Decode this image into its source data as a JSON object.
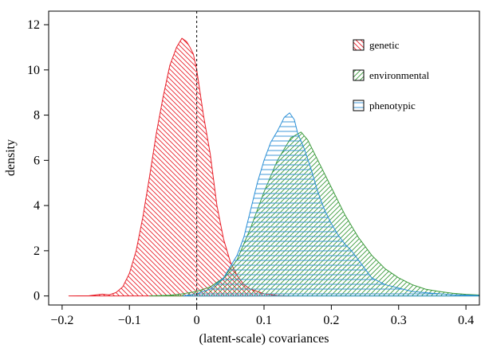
{
  "chart_data": {
    "type": "area",
    "xlabel": "(latent-scale) covariances",
    "ylabel": "density",
    "xlim": [
      -0.22,
      0.42
    ],
    "ylim": [
      -0.4,
      12.6
    ],
    "x_ticks": [
      -0.2,
      -0.1,
      0,
      0.1,
      0.2,
      0.3,
      0.4
    ],
    "x_tick_labels": [
      "−0.2",
      "−0.1",
      "0",
      "0.1",
      "0.2",
      "0.3",
      "0.4"
    ],
    "y_ticks": [
      0,
      2,
      4,
      6,
      8,
      10,
      12
    ],
    "y_tick_labels": [
      "0",
      "2",
      "4",
      "6",
      "8",
      "10",
      "12"
    ],
    "reference_line": {
      "x": 0,
      "style": "dashed",
      "color": "#000000"
    },
    "grid": false,
    "legend_position": "top-right",
    "series": [
      {
        "name": "genetic",
        "color": "#e8202a",
        "pattern": "diagonal-backslash",
        "points": [
          [
            -0.19,
            0
          ],
          [
            -0.16,
            0.01
          ],
          [
            -0.14,
            0.08
          ],
          [
            -0.13,
            0.05
          ],
          [
            -0.12,
            0.15
          ],
          [
            -0.11,
            0.4
          ],
          [
            -0.1,
            1.0
          ],
          [
            -0.09,
            2.0
          ],
          [
            -0.08,
            3.5
          ],
          [
            -0.07,
            5.3
          ],
          [
            -0.06,
            7.2
          ],
          [
            -0.05,
            8.8
          ],
          [
            -0.04,
            10.2
          ],
          [
            -0.03,
            11.0
          ],
          [
            -0.022,
            11.4
          ],
          [
            -0.015,
            11.25
          ],
          [
            -0.01,
            11.0
          ],
          [
            -0.005,
            10.7
          ],
          [
            0,
            10.0
          ],
          [
            0.005,
            9.0
          ],
          [
            0.01,
            8.0
          ],
          [
            0.02,
            6.3
          ],
          [
            0.03,
            4.0
          ],
          [
            0.04,
            2.5
          ],
          [
            0.05,
            1.5
          ],
          [
            0.06,
            0.9
          ],
          [
            0.07,
            0.5
          ],
          [
            0.08,
            0.3
          ],
          [
            0.1,
            0.1
          ],
          [
            0.12,
            0.02
          ],
          [
            0.14,
            0
          ]
        ]
      },
      {
        "name": "environmental",
        "color": "#3a9a3a",
        "pattern": "diagonal-slash",
        "points": [
          [
            -0.07,
            0
          ],
          [
            -0.04,
            0.03
          ],
          [
            -0.02,
            0.1
          ],
          [
            0,
            0.2
          ],
          [
            0.02,
            0.4
          ],
          [
            0.04,
            0.8
          ],
          [
            0.06,
            1.6
          ],
          [
            0.08,
            3.0
          ],
          [
            0.1,
            4.6
          ],
          [
            0.12,
            6.0
          ],
          [
            0.14,
            7.0
          ],
          [
            0.155,
            7.25
          ],
          [
            0.165,
            6.9
          ],
          [
            0.18,
            6.0
          ],
          [
            0.2,
            4.8
          ],
          [
            0.22,
            3.6
          ],
          [
            0.24,
            2.6
          ],
          [
            0.26,
            1.8
          ],
          [
            0.28,
            1.2
          ],
          [
            0.3,
            0.8
          ],
          [
            0.32,
            0.5
          ],
          [
            0.34,
            0.3
          ],
          [
            0.36,
            0.2
          ],
          [
            0.38,
            0.12
          ],
          [
            0.4,
            0.07
          ],
          [
            0.42,
            0.04
          ]
        ]
      },
      {
        "name": "phenotypic",
        "color": "#2a8fd6",
        "pattern": "horizontal",
        "points": [
          [
            -0.02,
            0
          ],
          [
            0,
            0.1
          ],
          [
            0.02,
            0.3
          ],
          [
            0.04,
            0.8
          ],
          [
            0.06,
            1.8
          ],
          [
            0.07,
            2.6
          ],
          [
            0.08,
            3.8
          ],
          [
            0.09,
            5.0
          ],
          [
            0.1,
            6.0
          ],
          [
            0.11,
            6.8
          ],
          [
            0.12,
            7.3
          ],
          [
            0.13,
            7.9
          ],
          [
            0.138,
            8.1
          ],
          [
            0.145,
            7.8
          ],
          [
            0.15,
            7.2
          ],
          [
            0.16,
            6.5
          ],
          [
            0.17,
            5.6
          ],
          [
            0.18,
            4.6
          ],
          [
            0.19,
            3.8
          ],
          [
            0.2,
            3.2
          ],
          [
            0.21,
            2.7
          ],
          [
            0.22,
            2.3
          ],
          [
            0.23,
            2.0
          ],
          [
            0.24,
            1.6
          ],
          [
            0.25,
            1.2
          ],
          [
            0.26,
            0.8
          ],
          [
            0.28,
            0.5
          ],
          [
            0.3,
            0.35
          ],
          [
            0.32,
            0.2
          ],
          [
            0.35,
            0.12
          ],
          [
            0.38,
            0.06
          ],
          [
            0.42,
            0.02
          ]
        ]
      }
    ]
  }
}
